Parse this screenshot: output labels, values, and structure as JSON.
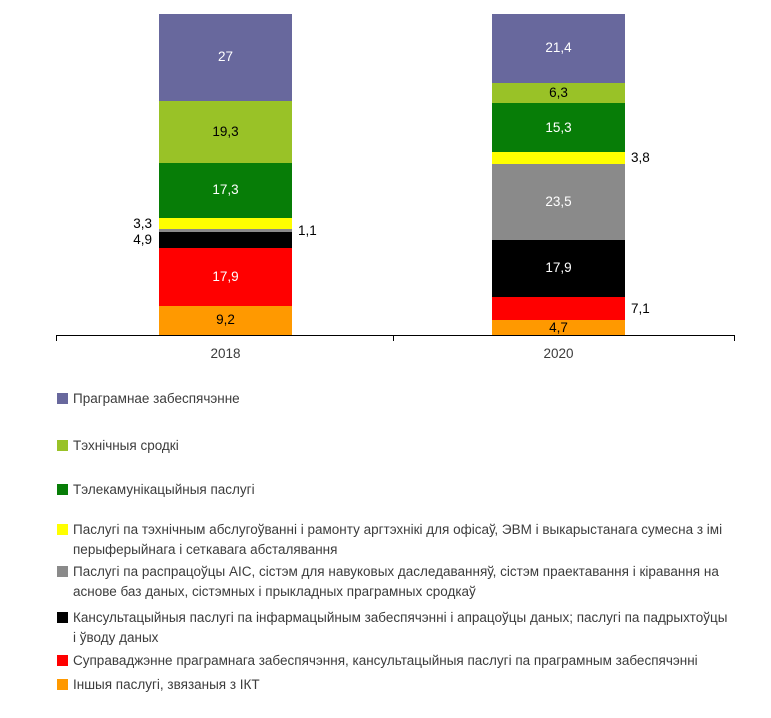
{
  "chart_data": {
    "type": "bar",
    "stacked": true,
    "orientation": "vertical",
    "units": "percent",
    "ylim": [
      0,
      100
    ],
    "grid": false,
    "legend_position": "bottom-left",
    "categories": [
      "2018",
      "2020"
    ],
    "series": [
      {
        "name": "Праграмнае забеспячэнне",
        "color": "#68689D",
        "values": [
          27,
          21.4
        ],
        "labels": [
          "27",
          "21,4"
        ],
        "label_placement": [
          "in-w",
          "in-w"
        ]
      },
      {
        "name": "Тэхнічныя сродкі",
        "color": "#99C227",
        "values": [
          19.3,
          6.3
        ],
        "labels": [
          "19,3",
          "6,3"
        ],
        "label_placement": [
          "in-b",
          "in-b"
        ]
      },
      {
        "name": "Тэлекамунікацыйныя паслугі",
        "color": "#077D07",
        "values": [
          17.3,
          15.3
        ],
        "labels": [
          "17,3",
          "15,3"
        ],
        "label_placement": [
          "in-w",
          "in-w"
        ]
      },
      {
        "name": "Паслугі па тэхнічным абслугоўванні і рамонту аргтэхнікі для офісаў, ЭВМ і выкарыстанага сумесна з імі перыферыйнага і сеткавага абсталявання",
        "color": "#FFFF00",
        "values": [
          3.3,
          3.8
        ],
        "labels": [
          "3,3",
          "3,8"
        ],
        "label_placement": [
          "out-l",
          "out-r"
        ]
      },
      {
        "name": "Паслугі па распрацоўцы АІС, сістэм для навуковых даследаванняў, сістэм праектавання і кіравання на аснове баз даных, сістэмных і прыкладных праграмных сродкаў",
        "color": "#8A8A8A",
        "values": [
          1.1,
          23.5
        ],
        "labels": [
          "1,1",
          "23,5"
        ],
        "label_placement": [
          "out-r",
          "in-w"
        ]
      },
      {
        "name": "Кансультацыйныя паслугі па інфармацыйным забеспячэнні і апрацоўцы даных; паслугі па падрыхтоўцы і ўводу даных",
        "color": "#000000",
        "values": [
          4.9,
          17.9
        ],
        "labels": [
          "4,9",
          "17,9"
        ],
        "label_placement": [
          "out-l",
          "in-w"
        ]
      },
      {
        "name": "Суправаджэнне праграмнага забеспячэння, кансультацыйныя паслугі па праграмным забеспячэнні",
        "color": "#FF0000",
        "values": [
          17.9,
          7.1
        ],
        "labels": [
          "17,9",
          "7,1"
        ],
        "label_placement": [
          "in-w",
          "out-r"
        ]
      },
      {
        "name": "Іншыя паслугі, звязаныя з ІКТ",
        "color": "#FF9900",
        "values": [
          9.2,
          4.7
        ],
        "labels": [
          "9,2",
          "4,7"
        ],
        "label_placement": [
          "in-b",
          "in-b"
        ]
      }
    ]
  }
}
